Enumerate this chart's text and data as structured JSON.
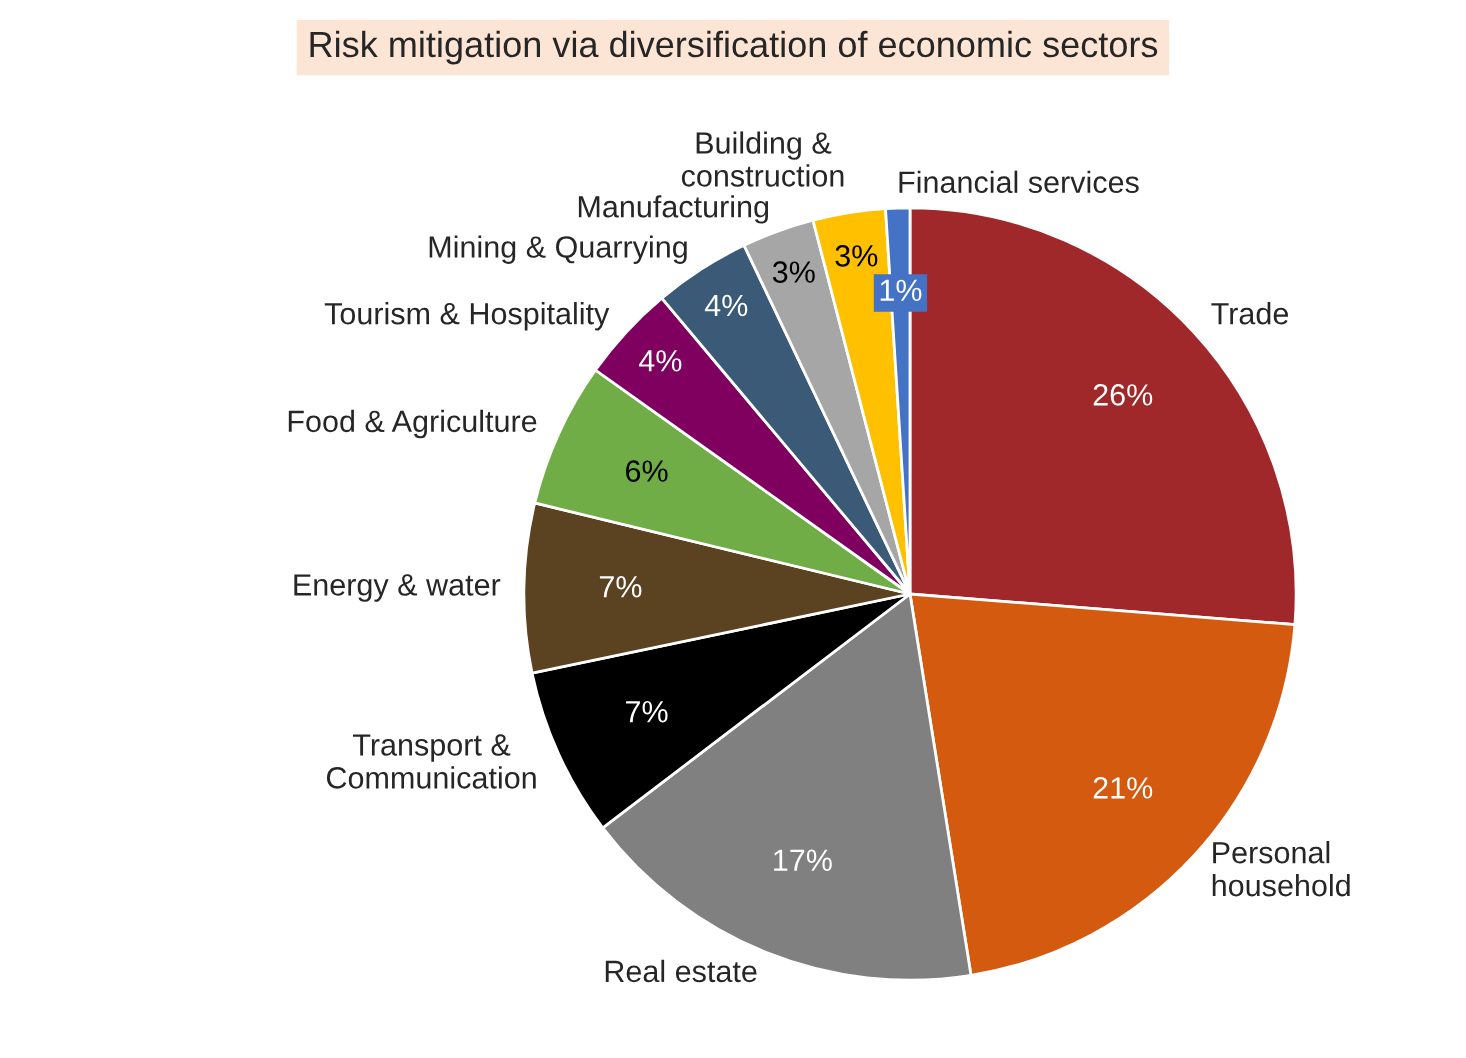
{
  "chart_data": {
    "type": "pie",
    "title": "Risk mitigation via diversification of economic sectors",
    "categories": [
      "Trade",
      "Personal household",
      "Real estate",
      "Transport & Communication",
      "Energy & water",
      "Food & Agriculture",
      "Tourism & Hospitality",
      "Mining & Quarrying",
      "Manufacturing",
      "Building & construction",
      "Financial services"
    ],
    "values": [
      26,
      21,
      17,
      7,
      7,
      6,
      4,
      4,
      3,
      3,
      1
    ],
    "value_labels": [
      "26%",
      "21%",
      "17%",
      "7%",
      "7%",
      "6%",
      "4%",
      "4%",
      "3%",
      "3%",
      "1%"
    ],
    "colors": [
      "#a0282a",
      "#d45a10",
      "#808080",
      "#000000",
      "#5b4220",
      "#70ad47",
      "#800060",
      "#3a5a78",
      "#a6a6a6",
      "#ffc000",
      "#4472c4"
    ],
    "legend": false
  }
}
